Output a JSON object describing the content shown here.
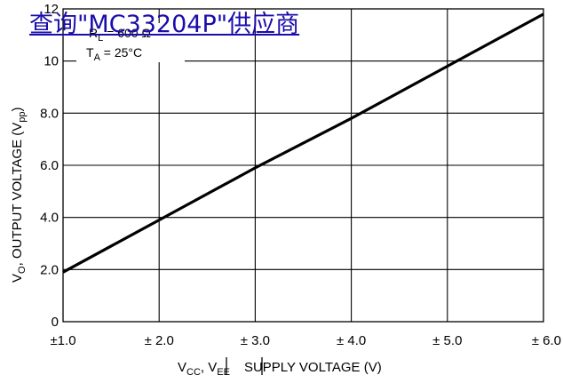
{
  "chart_data": {
    "type": "line",
    "x": [
      1.0,
      2.0,
      3.0,
      4.0,
      5.0,
      6.0
    ],
    "series": [
      {
        "values": [
          1.9,
          3.9,
          5.9,
          7.8,
          9.8,
          11.8
        ]
      }
    ],
    "xlim": [
      1.0,
      6.0
    ],
    "ylim": [
      0,
      12
    ],
    "x_tick_labels": [
      "±1.0",
      "± 2.0",
      "± 3.0",
      "± 4.0",
      "± 5.0",
      "± 6.0"
    ],
    "y_tick_labels": [
      "0",
      "2.0",
      "4.0",
      "6.0",
      "8.0",
      "10",
      "12"
    ],
    "y_ticks": [
      0,
      2,
      4,
      6,
      8,
      10,
      12
    ],
    "xlabel": {
      "v": "V",
      "cc": "CC",
      "sep": ", ",
      "v2": "V",
      "ee": "EE",
      "rest": "SUPPLY VOLTAGE (V)"
    },
    "ylabel": {
      "v": "V",
      "o": "O",
      "mid": ", OUTPUT VOLTAGE (V",
      "pp": "pp",
      "close": ")"
    },
    "annotations": {
      "rl_r": "R",
      "rl_l": "L",
      "rl_val": " = 600 Ω",
      "ta_t": "T",
      "ta_a": "A",
      "ta_val": " = 25°C"
    },
    "grid": true,
    "line_color": "#000000"
  },
  "watermark": {
    "text": "查询\"MC33204P\"供应商",
    "color": "#1a0dab"
  }
}
